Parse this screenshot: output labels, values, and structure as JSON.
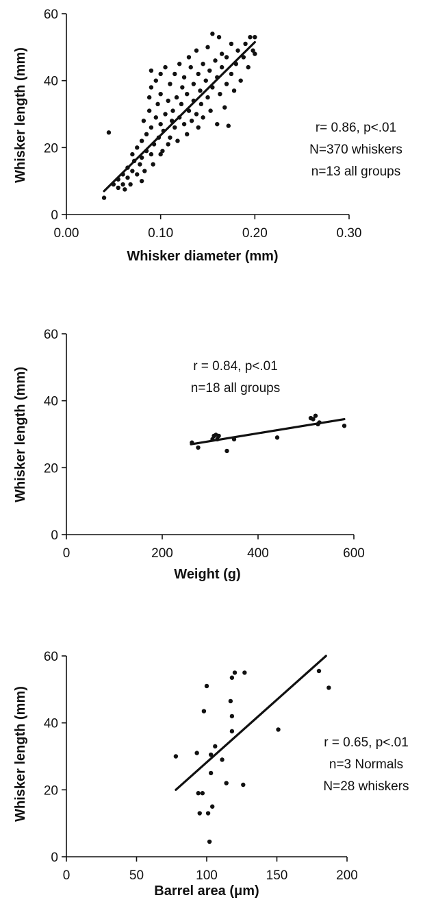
{
  "chart_data": [
    {
      "type": "scatter",
      "xlabel": "Whisker diameter (mm)",
      "ylabel": "Whisker length (mm)",
      "xlim": [
        0,
        0.3
      ],
      "ylim": [
        0,
        60
      ],
      "xticks": [
        "0.00",
        "0.10",
        "0.20",
        "0.30"
      ],
      "yticks": [
        "0",
        "20",
        "40",
        "60"
      ],
      "annotations": [
        "r= 0.86, p<.01",
        "N=370 whiskers",
        "n=13 all groups"
      ],
      "trendline": {
        "x": [
          0.04,
          0.2
        ],
        "y": [
          7,
          51.5
        ]
      },
      "points": [
        [
          0.04,
          5
        ],
        [
          0.045,
          24.5
        ],
        [
          0.05,
          9
        ],
        [
          0.055,
          10.5
        ],
        [
          0.055,
          8
        ],
        [
          0.06,
          12
        ],
        [
          0.06,
          9
        ],
        [
          0.062,
          7.5
        ],
        [
          0.065,
          11
        ],
        [
          0.065,
          14
        ],
        [
          0.068,
          9
        ],
        [
          0.07,
          13
        ],
        [
          0.07,
          18
        ],
        [
          0.072,
          16
        ],
        [
          0.075,
          12
        ],
        [
          0.075,
          20
        ],
        [
          0.078,
          15
        ],
        [
          0.08,
          10
        ],
        [
          0.08,
          22
        ],
        [
          0.08,
          17
        ],
        [
          0.082,
          28
        ],
        [
          0.083,
          13
        ],
        [
          0.085,
          19
        ],
        [
          0.085,
          24
        ],
        [
          0.088,
          31
        ],
        [
          0.088,
          35
        ],
        [
          0.09,
          18
        ],
        [
          0.09,
          26
        ],
        [
          0.09,
          38
        ],
        [
          0.09,
          43
        ],
        [
          0.092,
          15
        ],
        [
          0.093,
          21
        ],
        [
          0.095,
          29
        ],
        [
          0.095,
          40
        ],
        [
          0.097,
          33
        ],
        [
          0.098,
          23
        ],
        [
          0.1,
          18
        ],
        [
          0.1,
          27
        ],
        [
          0.1,
          36
        ],
        [
          0.1,
          42
        ],
        [
          0.102,
          19
        ],
        [
          0.103,
          25
        ],
        [
          0.105,
          30
        ],
        [
          0.105,
          44
        ],
        [
          0.108,
          21
        ],
        [
          0.108,
          34
        ],
        [
          0.11,
          23
        ],
        [
          0.11,
          39
        ],
        [
          0.112,
          28
        ],
        [
          0.113,
          31
        ],
        [
          0.115,
          26
        ],
        [
          0.115,
          42
        ],
        [
          0.117,
          35
        ],
        [
          0.118,
          22
        ],
        [
          0.12,
          29
        ],
        [
          0.12,
          45
        ],
        [
          0.122,
          33
        ],
        [
          0.123,
          38
        ],
        [
          0.125,
          27
        ],
        [
          0.125,
          41
        ],
        [
          0.128,
          24
        ],
        [
          0.128,
          36
        ],
        [
          0.13,
          31
        ],
        [
          0.13,
          47
        ],
        [
          0.132,
          44
        ],
        [
          0.133,
          28
        ],
        [
          0.135,
          34
        ],
        [
          0.135,
          39
        ],
        [
          0.138,
          30
        ],
        [
          0.138,
          49
        ],
        [
          0.14,
          26
        ],
        [
          0.14,
          42
        ],
        [
          0.142,
          37
        ],
        [
          0.143,
          33
        ],
        [
          0.145,
          45
        ],
        [
          0.145,
          29
        ],
        [
          0.148,
          40
        ],
        [
          0.15,
          35
        ],
        [
          0.15,
          50
        ],
        [
          0.152,
          43
        ],
        [
          0.153,
          31
        ],
        [
          0.155,
          38
        ],
        [
          0.155,
          54
        ],
        [
          0.158,
          46
        ],
        [
          0.16,
          27
        ],
        [
          0.16,
          41
        ],
        [
          0.162,
          53
        ],
        [
          0.163,
          36
        ],
        [
          0.165,
          44
        ],
        [
          0.165,
          48
        ],
        [
          0.168,
          32
        ],
        [
          0.17,
          39
        ],
        [
          0.17,
          47
        ],
        [
          0.172,
          26.5
        ],
        [
          0.175,
          42
        ],
        [
          0.175,
          51
        ],
        [
          0.178,
          37
        ],
        [
          0.18,
          45
        ],
        [
          0.182,
          49
        ],
        [
          0.185,
          40
        ],
        [
          0.188,
          47
        ],
        [
          0.19,
          51
        ],
        [
          0.193,
          44
        ],
        [
          0.195,
          53
        ],
        [
          0.198,
          49
        ],
        [
          0.2,
          53
        ],
        [
          0.2,
          48
        ]
      ]
    },
    {
      "type": "scatter",
      "xlabel": "Weight (g)",
      "ylabel": "Whisker length (mm)",
      "xlim": [
        0,
        600
      ],
      "ylim": [
        0,
        60
      ],
      "xticks": [
        "0",
        "200",
        "400",
        "600"
      ],
      "yticks": [
        "0",
        "20",
        "40",
        "60"
      ],
      "annotations": [
        "r = 0.84, p<.01",
        "n=18 all groups"
      ],
      "trendline": {
        "x": [
          260,
          580
        ],
        "y": [
          27,
          34.5
        ]
      },
      "points": [
        [
          262,
          27.5
        ],
        [
          275,
          26
        ],
        [
          305,
          28.5
        ],
        [
          308,
          29.5
        ],
        [
          312,
          29.8
        ],
        [
          315,
          28.5
        ],
        [
          318,
          29.5
        ],
        [
          335,
          25
        ],
        [
          350,
          28.5
        ],
        [
          440,
          29
        ],
        [
          510,
          34.8
        ],
        [
          515,
          34.5
        ],
        [
          520,
          35.5
        ],
        [
          525,
          33
        ],
        [
          528,
          33.5
        ],
        [
          580,
          32.5
        ]
      ]
    },
    {
      "type": "scatter",
      "xlabel": "Barrel area (μm)",
      "ylabel": "Whisker length (mm)",
      "xlim": [
        0,
        200
      ],
      "ylim": [
        0,
        60
      ],
      "xticks": [
        "0",
        "50",
        "100",
        "150",
        "200"
      ],
      "yticks": [
        "0",
        "20",
        "40",
        "60"
      ],
      "annotations": [
        "r = 0.65, p<.01",
        "n=3 Normals",
        "N=28 whiskers"
      ],
      "trendline": {
        "x": [
          78,
          185
        ],
        "y": [
          20,
          60
        ]
      },
      "points": [
        [
          78,
          30
        ],
        [
          93,
          31
        ],
        [
          94,
          19
        ],
        [
          95,
          13
        ],
        [
          97,
          19
        ],
        [
          98,
          43.5
        ],
        [
          100,
          51
        ],
        [
          101,
          13
        ],
        [
          102,
          4.5
        ],
        [
          103,
          25
        ],
        [
          103,
          30.5
        ],
        [
          104,
          15
        ],
        [
          106,
          33
        ],
        [
          111,
          29
        ],
        [
          114,
          22
        ],
        [
          117,
          46.5
        ],
        [
          118,
          42
        ],
        [
          118,
          37.5
        ],
        [
          118,
          53.5
        ],
        [
          120,
          55
        ],
        [
          126,
          21.5
        ],
        [
          127,
          55
        ],
        [
          151,
          38
        ],
        [
          180,
          55.5
        ],
        [
          187,
          50.5
        ]
      ]
    }
  ]
}
